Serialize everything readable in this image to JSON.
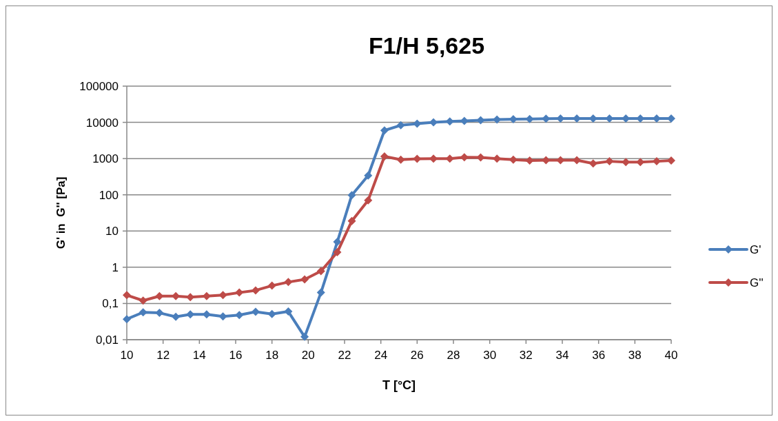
{
  "chart_data": {
    "type": "line",
    "title": "F1/H 5,625",
    "xlabel": "T [°C]",
    "ylabel": "G' in  G'' [Pa]",
    "x": [
      10,
      10.9,
      11.8,
      12.7,
      13.5,
      14.4,
      15.3,
      16.2,
      17.1,
      18,
      18.9,
      19.8,
      20.7,
      21.6,
      22.4,
      23.3,
      24.2,
      25.1,
      26,
      26.9,
      27.8,
      28.6,
      29.5,
      30.4,
      31.3,
      32.2,
      33.1,
      33.9,
      34.8,
      35.7,
      36.6,
      37.5,
      38.3,
      39.2,
      40
    ],
    "series": [
      {
        "name": "G'",
        "color": "#4a7ebb",
        "values": [
          0.037,
          0.057,
          0.055,
          0.043,
          0.05,
          0.05,
          0.044,
          0.048,
          0.059,
          0.051,
          0.06,
          0.012,
          0.2,
          5,
          98,
          340,
          6000,
          8300,
          9200,
          10000,
          10600,
          11000,
          11500,
          11900,
          12200,
          12400,
          12600,
          12800,
          12800,
          12800,
          12800,
          12800,
          12800,
          12800,
          12800
        ]
      },
      {
        "name": "G''",
        "color": "#be4b48",
        "values": [
          0.17,
          0.12,
          0.16,
          0.16,
          0.15,
          0.16,
          0.17,
          0.2,
          0.23,
          0.31,
          0.39,
          0.46,
          0.78,
          2.6,
          19,
          70,
          1150,
          930,
          980,
          1000,
          1000,
          1090,
          1070,
          1000,
          930,
          880,
          900,
          900,
          900,
          730,
          840,
          800,
          800,
          840,
          880
        ]
      }
    ],
    "log": "y",
    "xlim": [
      10,
      40
    ],
    "xticks": [
      10,
      12,
      14,
      16,
      18,
      20,
      22,
      24,
      26,
      28,
      30,
      32,
      34,
      36,
      38,
      40
    ],
    "ylim": [
      0.01,
      100000
    ],
    "yticks": [
      {
        "value": 0.01,
        "label": "0,01"
      },
      {
        "value": 0.1,
        "label": "0,1"
      },
      1,
      10,
      100,
      1000,
      10000,
      100000
    ],
    "grid": "y",
    "legend": "right",
    "marker": "diamond",
    "line_style": "solid"
  }
}
